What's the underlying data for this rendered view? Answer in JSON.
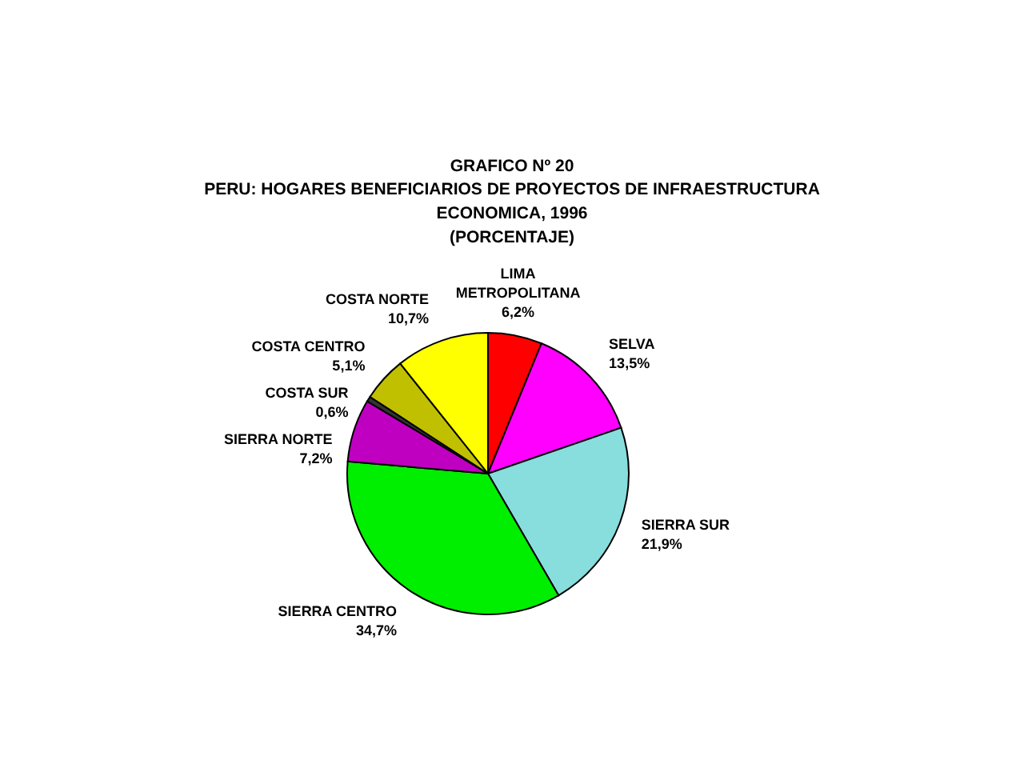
{
  "chart_data": {
    "type": "pie",
    "title": "GRAFICO Nº 20",
    "subtitle": "PERU: HOGARES BENEFICIARIOS DE PROYECTOS DE INFRAESTRUCTURA ECONOMICA, 1996",
    "annotations": [
      "(PORCENTAJE)"
    ],
    "categories": [
      "LIMA METROPOLITANA",
      "SELVA",
      "SIERRA SUR",
      "SIERRA CENTRO",
      "SIERRA NORTE",
      "COSTA SUR",
      "COSTA CENTRO",
      "COSTA NORTE"
    ],
    "values": [
      6.2,
      13.5,
      21.9,
      34.7,
      7.2,
      0.6,
      5.1,
      10.7
    ],
    "value_labels": [
      "6,2%",
      "13,5%",
      "21,9%",
      "34,7%",
      "7,2%",
      "0,6%",
      "5,1%",
      "10,7%"
    ],
    "colors": [
      "#ff0000",
      "#ff00ff",
      "#88dddd",
      "#00ee00",
      "#c000c0",
      "#333333",
      "#c0c000",
      "#ffff00"
    ]
  }
}
